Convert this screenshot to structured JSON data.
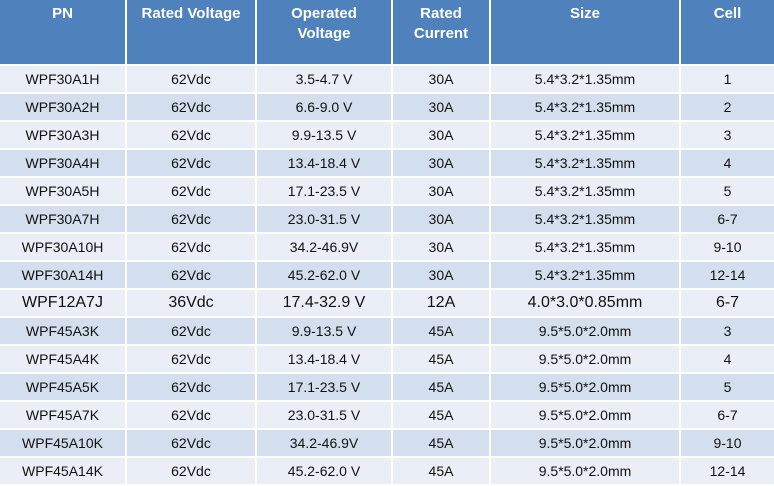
{
  "table": {
    "header": [
      "PN",
      "Rated Voltage",
      "Operated Voltage",
      "Rated Current",
      "Size",
      "Cell"
    ],
    "rows": [
      [
        "WPF30A1H",
        "62Vdc",
        "3.5-4.7 V",
        "30A",
        "5.4*3.2*1.35mm",
        "1"
      ],
      [
        "WPF30A2H",
        "62Vdc",
        "6.6-9.0 V",
        "30A",
        "5.4*3.2*1.35mm",
        "2"
      ],
      [
        "WPF30A3H",
        "62Vdc",
        "9.9-13.5 V",
        "30A",
        "5.4*3.2*1.35mm",
        "3"
      ],
      [
        "WPF30A4H",
        "62Vdc",
        "13.4-18.4 V",
        "30A",
        "5.4*3.2*1.35mm",
        "4"
      ],
      [
        "WPF30A5H",
        "62Vdc",
        "17.1-23.5 V",
        "30A",
        "5.4*3.2*1.35mm",
        "5"
      ],
      [
        "WPF30A7H",
        "62Vdc",
        "23.0-31.5 V",
        "30A",
        "5.4*3.2*1.35mm",
        "6-7"
      ],
      [
        "WPF30A10H",
        "62Vdc",
        "34.2-46.9V",
        "30A",
        "5.4*3.2*1.35mm",
        "9-10"
      ],
      [
        "WPF30A14H",
        "62Vdc",
        "45.2-62.0 V",
        "30A",
        "5.4*3.2*1.35mm",
        "12-14"
      ],
      [
        "WPF12A7J",
        "36Vdc",
        "17.4-32.9 V",
        "12A",
        "4.0*3.0*0.85mm",
        "6-7"
      ],
      [
        "WPF45A3K",
        "62Vdc",
        "9.9-13.5 V",
        "45A",
        "9.5*5.0*2.0mm",
        "3"
      ],
      [
        "WPF45A4K",
        "62Vdc",
        "13.4-18.4 V",
        "45A",
        "9.5*5.0*2.0mm",
        "4"
      ],
      [
        "WPF45A5K",
        "62Vdc",
        "17.1-23.5 V",
        "45A",
        "9.5*5.0*2.0mm",
        "5"
      ],
      [
        "WPF45A7K",
        "62Vdc",
        "23.0-31.5 V",
        "45A",
        "9.5*5.0*2.0mm",
        "6-7"
      ],
      [
        "WPF45A10K",
        "62Vdc",
        "34.2-46.9V",
        "45A",
        "9.5*5.0*2.0mm",
        "9-10"
      ],
      [
        "WPF45A14K",
        "62Vdc",
        "45.2-62.0 V",
        "45A",
        "9.5*5.0*2.0mm",
        "12-14"
      ]
    ]
  }
}
